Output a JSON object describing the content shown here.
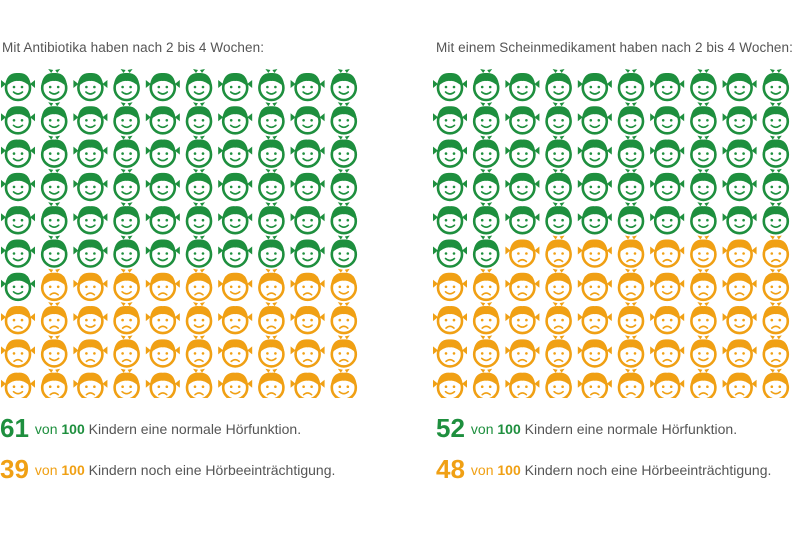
{
  "colors": {
    "normal": "#1e8f3e",
    "impaired": "#f0a014",
    "text": "#555555"
  },
  "chart_data": [
    {
      "type": "pictogram",
      "title": "Mit Antibiotika haben nach 2 bis 4 Wochen:",
      "total": 100,
      "columns": 10,
      "series": [
        {
          "name": "normale Hörfunktion",
          "value": 61,
          "color": "#1e8f3e"
        },
        {
          "name": "Hörbeeinträchtigung",
          "value": 39,
          "color": "#f0a014"
        }
      ],
      "labels": [
        {
          "number": "61",
          "von": "von",
          "total": "100",
          "text": "Kindern eine normale Hörfunktion."
        },
        {
          "number": "39",
          "von": "von",
          "total": "100",
          "text": "Kindern noch eine Hörbeeinträchtigung."
        }
      ]
    },
    {
      "type": "pictogram",
      "title": "Mit einem Scheinmedikament haben nach 2 bis 4 Wochen:",
      "total": 100,
      "columns": 10,
      "series": [
        {
          "name": "normale Hörfunktion",
          "value": 52,
          "color": "#1e8f3e"
        },
        {
          "name": "Hörbeeinträchtigung",
          "value": 48,
          "color": "#f0a014"
        }
      ],
      "labels": [
        {
          "number": "52",
          "von": "von",
          "total": "100",
          "text": "Kindern eine normale Hörfunktion."
        },
        {
          "number": "48",
          "von": "von",
          "total": "100",
          "text": "Kindern noch eine Hörbeeinträchtigung."
        }
      ]
    }
  ]
}
